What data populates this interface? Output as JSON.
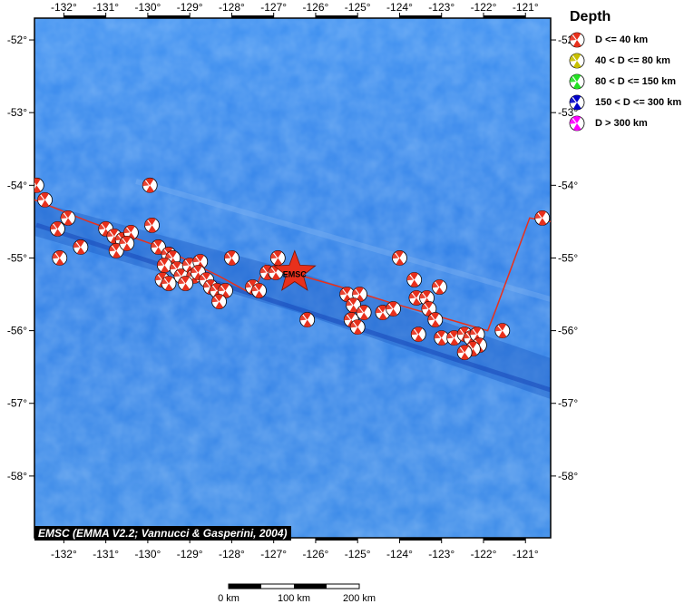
{
  "map": {
    "credit": "EMSC (EMMA V2.2; Vannucci & Gasperini, 2004)",
    "epicenter_label": "EMSC",
    "lon_ticks": [
      {
        "value": -132,
        "label": "-132°"
      },
      {
        "value": -131,
        "label": "-131°"
      },
      {
        "value": -130,
        "label": "-130°"
      },
      {
        "value": -129,
        "label": "-129°"
      },
      {
        "value": -128,
        "label": "-128°"
      },
      {
        "value": -127,
        "label": "-127°"
      },
      {
        "value": -126,
        "label": "-126°"
      },
      {
        "value": -125,
        "label": "-125°"
      },
      {
        "value": -124,
        "label": "-124°"
      },
      {
        "value": -123,
        "label": "-123°"
      },
      {
        "value": -122,
        "label": "-122°"
      },
      {
        "value": -121,
        "label": "-121°"
      }
    ],
    "lat_ticks": [
      {
        "value": -52,
        "label": "-52°"
      },
      {
        "value": -53,
        "label": "-53°"
      },
      {
        "value": -54,
        "label": "-54°"
      },
      {
        "value": -55,
        "label": "-55°"
      },
      {
        "value": -56,
        "label": "-56°"
      },
      {
        "value": -57,
        "label": "-57°"
      },
      {
        "value": -58,
        "label": "-58°"
      }
    ],
    "extent": {
      "lon_min": -132.7,
      "lon_max": -120.4,
      "lat_min": -58.85,
      "lat_max": -51.7
    },
    "epicenter": {
      "lon": -126.5,
      "lat": -55.2
    },
    "plate_boundary": [
      [
        -132.7,
        -54.2
      ],
      [
        -131.4,
        -54.5
      ],
      [
        -129.7,
        -54.85
      ],
      [
        -128.3,
        -55.25
      ],
      [
        -127.5,
        -55.5
      ],
      [
        -127.2,
        -55.1
      ],
      [
        -125.4,
        -55.4
      ],
      [
        -124.3,
        -55.6
      ],
      [
        -121.9,
        -56.0
      ],
      [
        -121.7,
        -55.7
      ],
      [
        -120.9,
        -54.45
      ],
      [
        -120.4,
        -54.5
      ]
    ],
    "events": [
      [
        -132.65,
        -54.0
      ],
      [
        -132.45,
        -54.2
      ],
      [
        -132.15,
        -54.6
      ],
      [
        -131.9,
        -54.45
      ],
      [
        -132.1,
        -55.0
      ],
      [
        -131.6,
        -54.85
      ],
      [
        -131.0,
        -54.6
      ],
      [
        -130.8,
        -54.7
      ],
      [
        -130.6,
        -54.75
      ],
      [
        -130.75,
        -54.9
      ],
      [
        -130.4,
        -54.65
      ],
      [
        -130.5,
        -54.8
      ],
      [
        -129.9,
        -54.55
      ],
      [
        -129.95,
        -54.0
      ],
      [
        -129.75,
        -54.85
      ],
      [
        -129.5,
        -54.95
      ],
      [
        -129.4,
        -55.0
      ],
      [
        -129.6,
        -55.1
      ],
      [
        -129.3,
        -55.15
      ],
      [
        -129.2,
        -55.25
      ],
      [
        -129.65,
        -55.3
      ],
      [
        -129.5,
        -55.35
      ],
      [
        -129.0,
        -55.1
      ],
      [
        -128.9,
        -55.25
      ],
      [
        -128.75,
        -55.05
      ],
      [
        -128.8,
        -55.2
      ],
      [
        -129.1,
        -55.35
      ],
      [
        -128.6,
        -55.3
      ],
      [
        -128.5,
        -55.4
      ],
      [
        -128.35,
        -55.45
      ],
      [
        -128.15,
        -55.45
      ],
      [
        -128.3,
        -55.6
      ],
      [
        -128.0,
        -55.0
      ],
      [
        -127.5,
        -55.4
      ],
      [
        -127.35,
        -55.45
      ],
      [
        -127.15,
        -55.2
      ],
      [
        -126.9,
        -55.0
      ],
      [
        -126.95,
        -55.2
      ],
      [
        -126.2,
        -55.85
      ],
      [
        -125.25,
        -55.5
      ],
      [
        -124.95,
        -55.5
      ],
      [
        -125.1,
        -55.65
      ],
      [
        -124.85,
        -55.75
      ],
      [
        -125.15,
        -55.85
      ],
      [
        -125.0,
        -55.95
      ],
      [
        -124.4,
        -55.75
      ],
      [
        -124.15,
        -55.7
      ],
      [
        -124.0,
        -55.0
      ],
      [
        -123.65,
        -55.3
      ],
      [
        -123.6,
        -55.55
      ],
      [
        -123.35,
        -55.55
      ],
      [
        -123.05,
        -55.4
      ],
      [
        -123.3,
        -55.7
      ],
      [
        -123.15,
        -55.85
      ],
      [
        -123.55,
        -56.05
      ],
      [
        -123.0,
        -56.1
      ],
      [
        -122.7,
        -56.1
      ],
      [
        -122.45,
        -56.05
      ],
      [
        -122.3,
        -56.1
      ],
      [
        -122.15,
        -56.05
      ],
      [
        -122.1,
        -56.2
      ],
      [
        -122.25,
        -56.25
      ],
      [
        -122.45,
        -56.3
      ],
      [
        -121.55,
        -56.0
      ],
      [
        -120.6,
        -54.45
      ]
    ]
  },
  "legend": {
    "title": "Depth",
    "items": [
      {
        "label": "D <= 40 km",
        "color": "#e8301c"
      },
      {
        "label": "40 < D <= 80 km",
        "color": "#c8c000"
      },
      {
        "label": "80 < D <= 150 km",
        "color": "#22e022"
      },
      {
        "label": "150 < D <= 300 km",
        "color": "#0000c8"
      },
      {
        "label": "D > 300 km",
        "color": "#ff00ff"
      }
    ]
  },
  "scale": {
    "labels": [
      "0 km",
      "100 km",
      "200 km"
    ]
  },
  "colors": {
    "ocean": "#2f7ee6",
    "plate_boundary": "#e8301c",
    "event": "#e8301c",
    "epicenter": "#e8301c"
  }
}
